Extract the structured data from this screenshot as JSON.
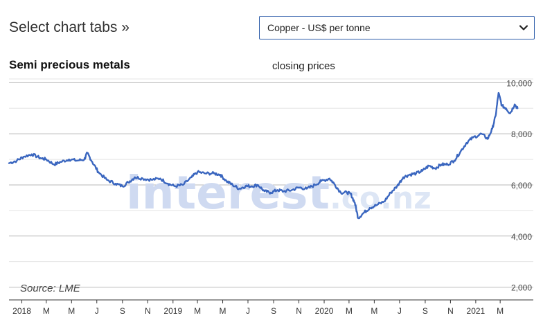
{
  "header": {
    "tabs_label": "Select chart tabs »",
    "select": {
      "value": "Copper - US$ per tonne"
    }
  },
  "watermark": {
    "text": "interest",
    "suffix": ".co.nz"
  },
  "source_text": "Source: LME",
  "chart_data": {
    "type": "line",
    "title": "Semi precious metals",
    "subtitle": "closing prices",
    "xlabel": "",
    "ylabel": "",
    "ylim": [
      1500,
      10200
    ],
    "xlim": [
      "2017-12-01",
      "2021-05-20"
    ],
    "yticks": [
      2000,
      4000,
      6000,
      8000,
      10000
    ],
    "ytick_labels": [
      "2,000",
      "4,000",
      "6,000",
      "8,000",
      "10,000"
    ],
    "xticks": [
      {
        "date": "2018-01-01",
        "label": "2018"
      },
      {
        "date": "2018-03-01",
        "label": "M"
      },
      {
        "date": "2018-05-01",
        "label": "M"
      },
      {
        "date": "2018-07-01",
        "label": "J"
      },
      {
        "date": "2018-09-01",
        "label": "S"
      },
      {
        "date": "2018-11-01",
        "label": "N"
      },
      {
        "date": "2019-01-01",
        "label": "2019"
      },
      {
        "date": "2019-03-01",
        "label": "M"
      },
      {
        "date": "2019-05-01",
        "label": "M"
      },
      {
        "date": "2019-07-01",
        "label": "J"
      },
      {
        "date": "2019-09-01",
        "label": "S"
      },
      {
        "date": "2019-11-01",
        "label": "N"
      },
      {
        "date": "2020-01-01",
        "label": "2020"
      },
      {
        "date": "2020-03-01",
        "label": "M"
      },
      {
        "date": "2020-05-01",
        "label": "M"
      },
      {
        "date": "2020-07-01",
        "label": "J"
      },
      {
        "date": "2020-09-01",
        "label": "S"
      },
      {
        "date": "2020-11-01",
        "label": "N"
      },
      {
        "date": "2021-01-01",
        "label": "2021"
      },
      {
        "date": "2021-03-01",
        "label": "M"
      }
    ],
    "grid": true,
    "series": [
      {
        "name": "",
        "color": "#3a66bf",
        "points": [
          [
            "2017-12-01",
            6850
          ],
          [
            "2017-12-20",
            6950
          ],
          [
            "2018-01-05",
            7100
          ],
          [
            "2018-01-25",
            7200
          ],
          [
            "2018-02-15",
            7050
          ],
          [
            "2018-03-01",
            7000
          ],
          [
            "2018-03-20",
            6800
          ],
          [
            "2018-04-05",
            6900
          ],
          [
            "2018-04-25",
            7000
          ],
          [
            "2018-05-15",
            6950
          ],
          [
            "2018-06-01",
            7000
          ],
          [
            "2018-06-08",
            7250
          ],
          [
            "2018-06-20",
            6900
          ],
          [
            "2018-07-05",
            6500
          ],
          [
            "2018-07-25",
            6200
          ],
          [
            "2018-08-15",
            6050
          ],
          [
            "2018-09-01",
            5950
          ],
          [
            "2018-09-15",
            6100
          ],
          [
            "2018-10-01",
            6300
          ],
          [
            "2018-10-20",
            6250
          ],
          [
            "2018-11-10",
            6200
          ],
          [
            "2018-12-01",
            6250
          ],
          [
            "2018-12-20",
            6050
          ],
          [
            "2019-01-05",
            5950
          ],
          [
            "2019-01-25",
            6000
          ],
          [
            "2019-02-15",
            6300
          ],
          [
            "2019-03-01",
            6500
          ],
          [
            "2019-03-20",
            6450
          ],
          [
            "2019-04-10",
            6450
          ],
          [
            "2019-04-25",
            6400
          ],
          [
            "2019-05-10",
            6150
          ],
          [
            "2019-05-25",
            6000
          ],
          [
            "2019-06-10",
            5850
          ],
          [
            "2019-06-25",
            5950
          ],
          [
            "2019-07-10",
            5950
          ],
          [
            "2019-07-25",
            6000
          ],
          [
            "2019-08-10",
            5750
          ],
          [
            "2019-08-25",
            5700
          ],
          [
            "2019-09-10",
            5800
          ],
          [
            "2019-09-25",
            5750
          ],
          [
            "2019-10-15",
            5800
          ],
          [
            "2019-11-01",
            5900
          ],
          [
            "2019-11-20",
            5850
          ],
          [
            "2019-12-10",
            6000
          ],
          [
            "2019-12-25",
            6150
          ],
          [
            "2020-01-14",
            6250
          ],
          [
            "2020-01-25",
            6050
          ],
          [
            "2020-02-10",
            5700
          ],
          [
            "2020-02-25",
            5700
          ],
          [
            "2020-03-05",
            5650
          ],
          [
            "2020-03-15",
            5300
          ],
          [
            "2020-03-23",
            4700
          ],
          [
            "2020-04-05",
            4900
          ],
          [
            "2020-04-20",
            5100
          ],
          [
            "2020-05-05",
            5200
          ],
          [
            "2020-05-25",
            5350
          ],
          [
            "2020-06-10",
            5700
          ],
          [
            "2020-06-25",
            5950
          ],
          [
            "2020-07-10",
            6300
          ],
          [
            "2020-07-25",
            6400
          ],
          [
            "2020-08-10",
            6450
          ],
          [
            "2020-08-25",
            6550
          ],
          [
            "2020-09-10",
            6750
          ],
          [
            "2020-09-25",
            6650
          ],
          [
            "2020-10-10",
            6800
          ],
          [
            "2020-10-25",
            6800
          ],
          [
            "2020-11-10",
            6950
          ],
          [
            "2020-11-25",
            7300
          ],
          [
            "2020-12-10",
            7650
          ],
          [
            "2020-12-25",
            7850
          ],
          [
            "2021-01-15",
            8000
          ],
          [
            "2021-01-30",
            7800
          ],
          [
            "2021-02-10",
            8200
          ],
          [
            "2021-02-18",
            8700
          ],
          [
            "2021-02-25",
            9600
          ],
          [
            "2021-03-05",
            9100
          ],
          [
            "2021-03-15",
            9000
          ],
          [
            "2021-03-25",
            8800
          ],
          [
            "2021-04-05",
            9150
          ],
          [
            "2021-04-12",
            9000
          ]
        ]
      }
    ]
  }
}
